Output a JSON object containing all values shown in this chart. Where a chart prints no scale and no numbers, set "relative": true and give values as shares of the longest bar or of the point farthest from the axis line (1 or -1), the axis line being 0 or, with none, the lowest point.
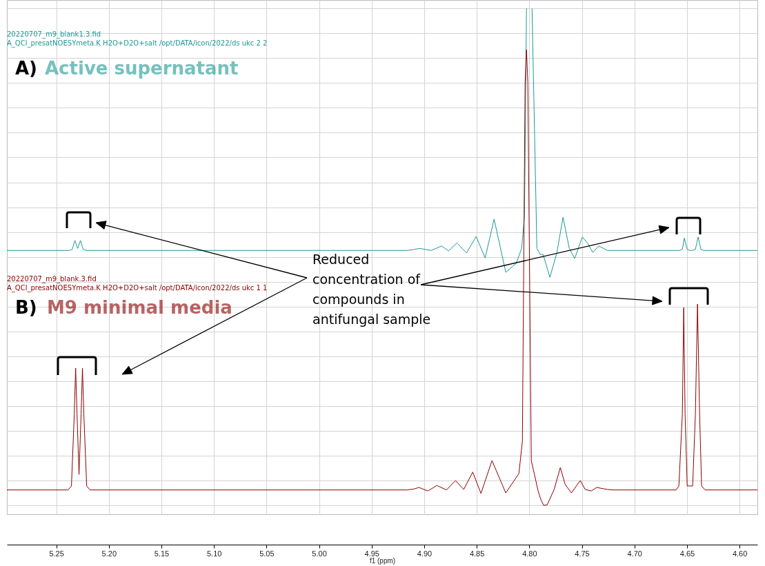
{
  "chart_data": {
    "type": "line",
    "relative": true,
    "xlabel": "f1 (ppm)",
    "grid": true,
    "xlim": [
      5.297,
      4.583
    ],
    "xticks": [
      5.25,
      {
        "value": 5.2,
        "label": "5.20"
      },
      5.15,
      {
        "value": 5.1,
        "label": "5.10"
      },
      5.05,
      {
        "value": 5,
        "label": "5.00"
      },
      4.95,
      {
        "value": 4.9,
        "label": "4.90"
      },
      4.85,
      {
        "value": 4.8,
        "label": "4.80"
      },
      4.75,
      {
        "value": 4.7,
        "label": "4.70"
      },
      4.65,
      {
        "value": 4.6,
        "label": "4.60"
      }
    ],
    "annotations": [
      "20220707_m9_blank1.3.fid",
      "A_QCl_presatNOESYmeta.K H2O+D2O+salt /opt/DATA/icon/2022/ds ukc 2 2",
      "A)",
      "20220707_m9_blank.3.fid",
      "A_QCl_presatNOESYmeta.K H2O+D2O+salt /opt/DATA/icon/2022/ds ukc 1 1",
      "B)",
      "Reduced concentration of compounds in antifungal sample"
    ],
    "series": [
      {
        "name": "Active supernatant",
        "color": "#1b9896",
        "x": [
          5.297,
          5.2375,
          5.2349,
          5.2323,
          5.2297,
          5.227,
          5.2244,
          5.2211,
          4.9161,
          4.9096,
          4.9043,
          4.8932,
          4.8834,
          4.8768,
          4.8689,
          4.8597,
          4.8506,
          4.842,
          4.8335,
          4.8224,
          4.8125,
          4.8073,
          4.8046,
          4.8027,
          4.8,
          4.7974,
          4.7928,
          4.7896,
          4.7869,
          4.7804,
          4.7738,
          4.7679,
          4.762,
          4.7568,
          4.7495,
          4.7443,
          4.7397,
          4.7338,
          4.7259,
          4.7128,
          4.6571,
          4.6544,
          4.6525,
          4.6498,
          4.6472,
          4.6446,
          4.642,
          4.6394,
          4.6367,
          4.6341,
          4.583
        ],
        "values": [
          0.513,
          0.513,
          0.515,
          0.533,
          0.517,
          0.533,
          0.515,
          0.513,
          0.513,
          0.515,
          0.517,
          0.513,
          0.522,
          0.512,
          0.528,
          0.508,
          0.541,
          0.498,
          0.576,
          0.469,
          0.487,
          0.517,
          0.583,
          1.0,
          null,
          1.0,
          0.517,
          0.505,
          0.505,
          0.459,
          0.508,
          0.58,
          0.517,
          0.497,
          0.54,
          0.527,
          0.509,
          0.522,
          0.513,
          0.513,
          0.513,
          0.515,
          0.538,
          0.515,
          0.513,
          0.513,
          0.515,
          0.54,
          0.515,
          0.513,
          0.513
        ]
      },
      {
        "name": "M9 minimal media",
        "color": "#8b0000",
        "x": [
          5.297,
          5.2388,
          5.2356,
          5.2329,
          5.2316,
          5.2303,
          5.2284,
          5.2264,
          5.2251,
          5.2238,
          5.2211,
          5.2179,
          4.9161,
          4.9096,
          4.905,
          4.8965,
          4.8879,
          4.8788,
          4.8702,
          4.8624,
          4.8538,
          4.846,
          4.8355,
          4.8224,
          4.8099,
          4.8066,
          4.804,
          4.8027,
          4.8014,
          4.7981,
          4.7915,
          4.7889,
          4.7863,
          4.783,
          4.7764,
          4.7705,
          4.7659,
          4.76,
          4.7515,
          4.7469,
          4.741,
          4.7358,
          4.7259,
          4.7194,
          4.6604,
          4.6577,
          4.6544,
          4.6531,
          4.6518,
          4.6498,
          4.6472,
          4.6446,
          4.642,
          4.64,
          4.638,
          4.6361,
          4.6328,
          4.583
        ],
        "values": [
          0.031,
          0.031,
          0.039,
          0.184,
          0.276,
          0.184,
          0.062,
          0.184,
          0.276,
          0.184,
          0.039,
          0.031,
          0.031,
          0.033,
          0.036,
          0.029,
          0.04,
          0.031,
          0.05,
          0.032,
          0.067,
          0.024,
          0.09,
          0.025,
          0.064,
          0.129,
          0.85,
          0.917,
          0.85,
          0.09,
          0.028,
          0.011,
          0.0,
          0.001,
          0.032,
          0.076,
          0.042,
          0.025,
          0.05,
          0.032,
          0.029,
          0.036,
          0.032,
          0.031,
          0.031,
          0.039,
          0.184,
          0.398,
          0.184,
          0.039,
          0.039,
          0.039,
          0.184,
          0.405,
          0.184,
          0.039,
          0.031,
          0.031
        ]
      }
    ]
  }
}
